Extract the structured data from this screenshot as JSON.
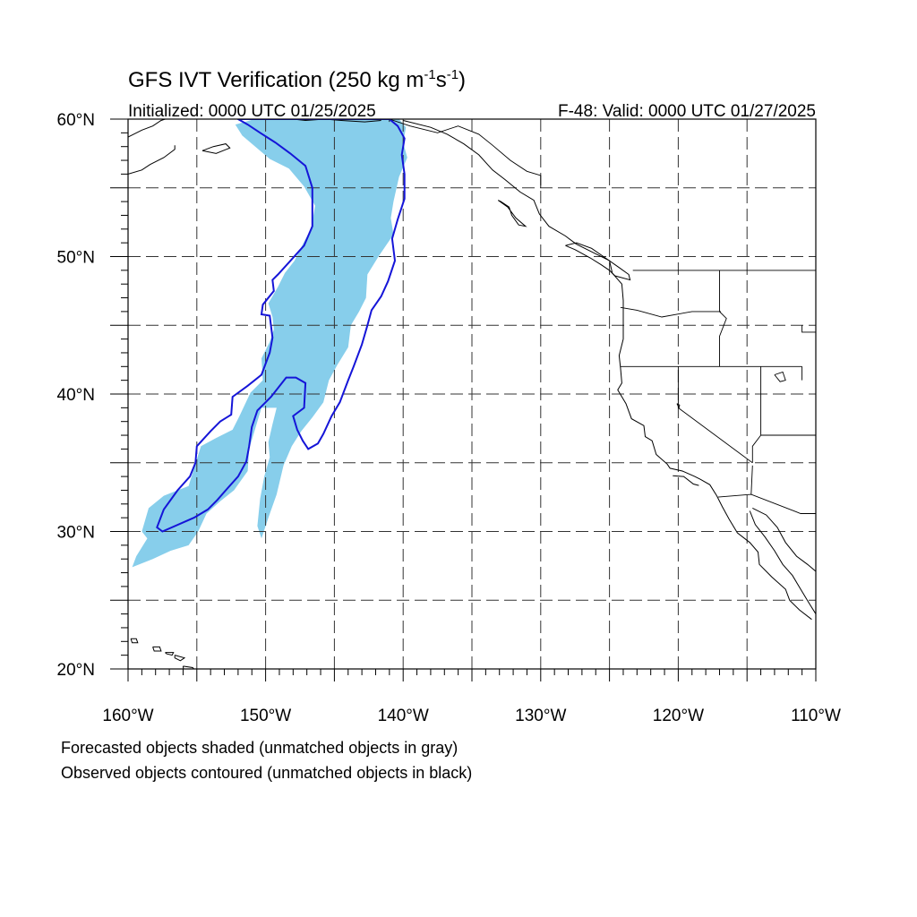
{
  "title": {
    "main_prefix": "GFS IVT Verification (250 kg m",
    "exp1": "-1",
    "s": "s",
    "exp2": "-1",
    "close": ")"
  },
  "subtitle_left": "Initialized: 0000 UTC 01/25/2025",
  "subtitle_right": "F-48: Valid: 0000 UTC 01/27/2025",
  "map": {
    "lon_range": [
      -160,
      -110
    ],
    "lat_range": [
      20,
      60
    ],
    "grid_lon": [
      -155,
      -150,
      -145,
      -140,
      -135,
      -130,
      -125,
      -120,
      -115
    ],
    "grid_lat": [
      25,
      30,
      35,
      40,
      45,
      50,
      55
    ],
    "lat_labels": [
      {
        "lat": 60,
        "text": "60°N"
      },
      {
        "lat": 50,
        "text": "50°N"
      },
      {
        "lat": 40,
        "text": "40°N"
      },
      {
        "lat": 30,
        "text": "30°N"
      },
      {
        "lat": 20,
        "text": "20°N"
      }
    ],
    "lon_labels": [
      {
        "lon": -160,
        "text": "160°W"
      },
      {
        "lon": -150,
        "text": "150°W"
      },
      {
        "lon": -140,
        "text": "140°W"
      },
      {
        "lon": -130,
        "text": "130°W"
      },
      {
        "lon": -120,
        "text": "120°W"
      },
      {
        "lon": -110,
        "text": "110°W"
      }
    ],
    "forecast_color": "#87ceeb",
    "observed_color": "#1515d8",
    "forecast_object": [
      [
        -142.3,
        60
      ],
      [
        -140.3,
        60
      ],
      [
        -139.8,
        59.4
      ],
      [
        -140.0,
        58.3
      ],
      [
        -139.7,
        57.2
      ],
      [
        -140.3,
        55.8
      ],
      [
        -140.7,
        54.0
      ],
      [
        -140.9,
        52.8
      ],
      [
        -140.7,
        51.6
      ],
      [
        -141.8,
        50.0
      ],
      [
        -142.6,
        48.7
      ],
      [
        -142.7,
        47.0
      ],
      [
        -143.2,
        46.0
      ],
      [
        -143.8,
        45.0
      ],
      [
        -144.0,
        43.4
      ],
      [
        -144.8,
        42.1
      ],
      [
        -145.4,
        41.0
      ],
      [
        -145.8,
        39.4
      ],
      [
        -146.6,
        38.3
      ],
      [
        -147.4,
        37.3
      ],
      [
        -148.1,
        36.2
      ],
      [
        -148.7,
        34.8
      ],
      [
        -149.2,
        32.7
      ],
      [
        -149.8,
        31.0
      ],
      [
        -150.3,
        29.5
      ],
      [
        -150.6,
        30.4
      ],
      [
        -150.4,
        32.4
      ],
      [
        -150.1,
        34.0
      ],
      [
        -149.7,
        35.4
      ],
      [
        -149.8,
        36.5
      ],
      [
        -149.5,
        37.8
      ],
      [
        -149.2,
        39.0
      ],
      [
        -150.3,
        39.0
      ],
      [
        -151.2,
        36.0
      ],
      [
        -151.3,
        34.4
      ],
      [
        -152.3,
        33.0
      ],
      [
        -153.3,
        32.2
      ],
      [
        -154.3,
        31.3
      ],
      [
        -154.9,
        30.0
      ],
      [
        -155.6,
        29.0
      ],
      [
        -156.9,
        28.6
      ],
      [
        -158.2,
        28.0
      ],
      [
        -159.7,
        27.4
      ],
      [
        -159.4,
        28.2
      ],
      [
        -158.6,
        29.5
      ],
      [
        -159.0,
        30.0
      ],
      [
        -158.5,
        31.7
      ],
      [
        -157.4,
        32.6
      ],
      [
        -156.4,
        33.0
      ],
      [
        -155.6,
        33.3
      ],
      [
        -155.2,
        34.6
      ],
      [
        -154.7,
        36.2
      ],
      [
        -153.6,
        36.8
      ],
      [
        -152.4,
        37.4
      ],
      [
        -151.9,
        38.4
      ],
      [
        -151.1,
        40.1
      ],
      [
        -150.2,
        41.0
      ],
      [
        -150.3,
        42.6
      ],
      [
        -149.7,
        43.8
      ],
      [
        -149.4,
        44.7
      ],
      [
        -149.5,
        45.6
      ],
      [
        -149.8,
        46.6
      ],
      [
        -149.1,
        47.8
      ],
      [
        -148.6,
        48.8
      ],
      [
        -147.9,
        49.7
      ],
      [
        -147.3,
        50.9
      ],
      [
        -146.7,
        52.0
      ],
      [
        -146.4,
        53.7
      ],
      [
        -147.2,
        55.1
      ],
      [
        -148.3,
        56.4
      ],
      [
        -149.7,
        57.1
      ],
      [
        -151.7,
        58.8
      ],
      [
        -152.2,
        59.6
      ],
      [
        -150.8,
        60
      ]
    ],
    "observed_object": [
      [
        -152.0,
        60
      ],
      [
        -151.3,
        59.6
      ],
      [
        -150.4,
        59.0
      ],
      [
        -149.3,
        58.3
      ],
      [
        -148.2,
        57.5
      ],
      [
        -147.1,
        56.6
      ],
      [
        -146.6,
        55.0
      ],
      [
        -146.6,
        53.8
      ],
      [
        -146.6,
        52.2
      ],
      [
        -147.2,
        50.8
      ],
      [
        -148.1,
        49.8
      ],
      [
        -149.1,
        48.7
      ],
      [
        -149.5,
        48.3
      ],
      [
        -149.4,
        47.5
      ],
      [
        -150.2,
        46.5
      ],
      [
        -150.3,
        45.8
      ],
      [
        -149.7,
        45.7
      ],
      [
        -149.5,
        44.1
      ],
      [
        -149.7,
        43.0
      ],
      [
        -150.3,
        41.4
      ],
      [
        -151.3,
        40.6
      ],
      [
        -152.4,
        39.8
      ],
      [
        -152.5,
        38.5
      ],
      [
        -153.3,
        38.0
      ],
      [
        -154.0,
        37.3
      ],
      [
        -155.0,
        36.2
      ],
      [
        -155.1,
        35.0
      ],
      [
        -155.5,
        34.0
      ],
      [
        -156.4,
        33.0
      ],
      [
        -157.4,
        31.6
      ],
      [
        -157.9,
        30.3
      ],
      [
        -157.5,
        30.0
      ],
      [
        -155.2,
        31.0
      ],
      [
        -154.2,
        31.6
      ],
      [
        -153.5,
        32.3
      ],
      [
        -152.9,
        33.0
      ],
      [
        -152.0,
        34.0
      ],
      [
        -151.4,
        35.1
      ],
      [
        -151.2,
        36.2
      ],
      [
        -151.0,
        37.6
      ],
      [
        -150.6,
        38.8
      ],
      [
        -149.6,
        39.8
      ],
      [
        -148.5,
        41.2
      ],
      [
        -147.8,
        41.2
      ],
      [
        -147.1,
        40.8
      ],
      [
        -147.2,
        39.0
      ],
      [
        -148.0,
        38.4
      ],
      [
        -147.7,
        37.4
      ],
      [
        -147.3,
        36.6
      ],
      [
        -146.9,
        36.0
      ],
      [
        -146.2,
        36.4
      ],
      [
        -145.8,
        37.1
      ],
      [
        -145.2,
        38.4
      ],
      [
        -144.6,
        39.4
      ],
      [
        -144.0,
        41.0
      ],
      [
        -143.6,
        42.0
      ],
      [
        -143.0,
        43.6
      ],
      [
        -142.6,
        45.0
      ],
      [
        -142.3,
        46.1
      ],
      [
        -141.6,
        47.1
      ],
      [
        -141.1,
        48.2
      ],
      [
        -140.6,
        49.7
      ],
      [
        -140.8,
        51.3
      ],
      [
        -140.4,
        52.7
      ],
      [
        -139.9,
        54.2
      ],
      [
        -139.9,
        56.0
      ],
      [
        -140.1,
        57.4
      ],
      [
        -139.9,
        58.6
      ],
      [
        -140.4,
        59.5
      ],
      [
        -141.0,
        60
      ]
    ],
    "coastline": [
      [
        -140.0,
        59.9
      ],
      [
        -138.0,
        59.4
      ],
      [
        -136.8,
        58.9
      ],
      [
        -135.6,
        58.2
      ],
      [
        -134.5,
        57.4
      ],
      [
        -133.5,
        56.3
      ],
      [
        -132.6,
        55.6
      ],
      [
        -131.5,
        54.7
      ],
      [
        -130.5,
        54.1
      ],
      [
        -130.1,
        53.1
      ],
      [
        -129.4,
        52.2
      ],
      [
        -128.2,
        51.5
      ],
      [
        -127.4,
        50.9
      ],
      [
        -126.2,
        50.3
      ],
      [
        -125.0,
        49.7
      ],
      [
        -124.8,
        48.8
      ],
      [
        -124.1,
        48.0
      ],
      [
        -124.0,
        46.8
      ],
      [
        -124.0,
        45.4
      ],
      [
        -124.0,
        44.0
      ],
      [
        -124.3,
        42.8
      ],
      [
        -124.2,
        41.9
      ],
      [
        -124.1,
        40.8
      ],
      [
        -124.4,
        40.3
      ],
      [
        -123.8,
        39.3
      ],
      [
        -123.4,
        38.2
      ],
      [
        -122.5,
        37.7
      ],
      [
        -122.4,
        36.9
      ],
      [
        -121.9,
        36.6
      ],
      [
        -121.6,
        35.6
      ],
      [
        -120.8,
        34.9
      ],
      [
        -120.6,
        34.6
      ],
      [
        -119.7,
        34.4
      ],
      [
        -118.8,
        34.0
      ],
      [
        -118.4,
        33.8
      ],
      [
        -117.7,
        33.4
      ],
      [
        -117.2,
        32.6
      ],
      [
        -116.8,
        31.8
      ],
      [
        -116.3,
        30.9
      ],
      [
        -115.7,
        29.9
      ],
      [
        -114.8,
        29.2
      ],
      [
        -114.2,
        28.5
      ],
      [
        -114.1,
        27.6
      ],
      [
        -113.2,
        26.7
      ],
      [
        -112.2,
        25.8
      ],
      [
        -111.9,
        25.0
      ],
      [
        -111.2,
        24.3
      ],
      [
        -110.3,
        23.6
      ]
    ],
    "coastline_north": [
      [
        -148.0,
        60.0
      ],
      [
        -147.1,
        59.9
      ],
      [
        -145.7,
        60.0
      ],
      [
        -144.5,
        59.9
      ],
      [
        -142.8,
        59.8
      ],
      [
        -141.6,
        59.9
      ]
    ],
    "gulf_coast": [
      [
        -114.8,
        31.5
      ],
      [
        -114.4,
        30.5
      ],
      [
        -113.7,
        29.6
      ],
      [
        -113.0,
        28.6
      ],
      [
        -112.4,
        27.6
      ],
      [
        -111.7,
        26.8
      ],
      [
        -111.1,
        25.8
      ],
      [
        -110.5,
        24.8
      ],
      [
        -110.0,
        24.0
      ]
    ],
    "mainland_mexico": [
      [
        -114.6,
        31.7
      ],
      [
        -113.6,
        31.2
      ],
      [
        -112.8,
        30.3
      ],
      [
        -112.2,
        29.2
      ],
      [
        -111.4,
        28.2
      ],
      [
        -110.6,
        27.6
      ],
      [
        -110.0,
        27.1
      ]
    ],
    "alaska_west": [
      [
        -160,
        58.7
      ],
      [
        -159.0,
        59.2
      ],
      [
        -158.2,
        59.5
      ],
      [
        -157.6,
        59.9
      ],
      [
        -157.3,
        60.0
      ]
    ],
    "alaska_pen": [
      [
        -160,
        56.0
      ],
      [
        -159.0,
        56.3
      ],
      [
        -158.4,
        56.7
      ],
      [
        -157.4,
        57.2
      ],
      [
        -156.6,
        57.8
      ],
      [
        -156.6,
        58.1
      ]
    ],
    "vancouver_island": [
      [
        -128.2,
        50.8
      ],
      [
        -127.5,
        50.5
      ],
      [
        -126.4,
        49.9
      ],
      [
        -125.6,
        49.4
      ],
      [
        -125.0,
        49.0
      ],
      [
        -124.6,
        48.6
      ],
      [
        -123.5,
        48.3
      ],
      [
        -123.6,
        48.7
      ],
      [
        -124.3,
        49.2
      ],
      [
        -125.3,
        49.9
      ],
      [
        -126.3,
        50.6
      ],
      [
        -127.4,
        51.0
      ],
      [
        -128.2,
        50.8
      ]
    ],
    "haida_gwaii": [
      [
        -133.1,
        54.1
      ],
      [
        -132.4,
        53.6
      ],
      [
        -131.8,
        52.8
      ],
      [
        -131.1,
        52.2
      ],
      [
        -131.6,
        52.3
      ],
      [
        -132.1,
        53.0
      ],
      [
        -132.3,
        53.6
      ],
      [
        -132.9,
        54.0
      ],
      [
        -133.1,
        54.1
      ]
    ],
    "kodiak": [
      [
        -154.6,
        57.7
      ],
      [
        -153.6,
        57.5
      ],
      [
        -152.6,
        57.9
      ],
      [
        -152.9,
        58.2
      ],
      [
        -153.8,
        58.0
      ],
      [
        -154.6,
        57.7
      ]
    ],
    "hawaii_islands": [
      [
        [
          -159.8,
          22.2
        ],
        [
          -159.4,
          22.2
        ],
        [
          -159.3,
          21.9
        ],
        [
          -159.7,
          21.9
        ],
        [
          -159.8,
          22.2
        ]
      ],
      [
        [
          -158.2,
          21.6
        ],
        [
          -157.7,
          21.6
        ],
        [
          -157.6,
          21.3
        ],
        [
          -158.1,
          21.3
        ],
        [
          -158.2,
          21.6
        ]
      ],
      [
        [
          -157.3,
          21.2
        ],
        [
          -156.7,
          21.2
        ],
        [
          -156.8,
          21.0
        ],
        [
          -157.2,
          21.1
        ],
        [
          -157.3,
          21.2
        ]
      ],
      [
        [
          -156.6,
          21.0
        ],
        [
          -155.9,
          20.8
        ],
        [
          -156.2,
          20.6
        ],
        [
          -156.6,
          20.8
        ],
        [
          -156.6,
          21.0
        ]
      ],
      [
        [
          -156.0,
          20.2
        ],
        [
          -155.3,
          20.1
        ],
        [
          -154.9,
          19.6
        ],
        [
          -155.7,
          19.0
        ],
        [
          -155.9,
          19.6
        ],
        [
          -156.0,
          20.2
        ]
      ]
    ],
    "channel_islands": [
      [
        -120.4,
        34.05
      ],
      [
        -119.6,
        34.0
      ],
      [
        -118.9,
        33.45
      ],
      [
        -118.5,
        33.35
      ]
    ],
    "borders": [
      [
        [
          -123.3,
          49.0
        ],
        [
          -110.0,
          49.0
        ]
      ],
      [
        [
          -141.0,
          60.0
        ],
        [
          -141.0,
          59.8
        ]
      ],
      [
        [
          -124.2,
          46.3
        ],
        [
          -123.0,
          46.1
        ],
        [
          -121.2,
          45.6
        ],
        [
          -119.0,
          46.0
        ],
        [
          -116.9,
          46.0
        ]
      ],
      [
        [
          -117.0,
          49.0
        ],
        [
          -117.0,
          46.0
        ],
        [
          -116.5,
          45.5
        ],
        [
          -117.0,
          44.2
        ],
        [
          -117.0,
          42.0
        ]
      ],
      [
        [
          -124.2,
          42.0
        ],
        [
          -120.0,
          42.0
        ],
        [
          -111.0,
          42.0
        ]
      ],
      [
        [
          -120.0,
          42.0
        ],
        [
          -120.0,
          39.0
        ],
        [
          -114.6,
          35.0
        ]
      ],
      [
        [
          -114.0,
          42.0
        ],
        [
          -114.0,
          37.0
        ],
        [
          -114.6,
          36.2
        ],
        [
          -114.6,
          35.0
        ]
      ],
      [
        [
          -114.0,
          37.0
        ],
        [
          -110.0,
          37.0
        ]
      ],
      [
        [
          -111.0,
          45.0
        ],
        [
          -111.0,
          44.5
        ],
        [
          -110.0,
          44.5
        ]
      ],
      [
        [
          -111.0,
          41.0
        ],
        [
          -111.0,
          42.0
        ]
      ],
      [
        [
          -117.1,
          32.5
        ],
        [
          -114.7,
          32.7
        ],
        [
          -111.1,
          31.3
        ],
        [
          -110.0,
          31.3
        ]
      ],
      [
        [
          -114.7,
          32.7
        ],
        [
          -114.6,
          34.8
        ]
      ]
    ],
    "bc_alaska_border": [
      [
        -141.0,
        60.0
      ],
      [
        -139.5,
        59.5
      ],
      [
        -137.5,
        59.0
      ],
      [
        -136.0,
        59.5
      ],
      [
        -134.5,
        58.9
      ],
      [
        -133.5,
        58.1
      ],
      [
        -132.2,
        57.0
      ],
      [
        -131.0,
        56.2
      ],
      [
        -130.0,
        55.9
      ],
      [
        -130.0,
        55.0
      ]
    ],
    "lakes": [
      [
        [
          -113.0,
          41.4
        ],
        [
          -112.4,
          41.6
        ],
        [
          -112.2,
          41.0
        ],
        [
          -112.6,
          40.9
        ],
        [
          -113.0,
          41.4
        ]
      ],
      [
        [
          -120.1,
          39.3
        ],
        [
          -119.9,
          39.2
        ],
        [
          -119.95,
          39.0
        ],
        [
          -120.1,
          39.3
        ]
      ]
    ]
  }
}
